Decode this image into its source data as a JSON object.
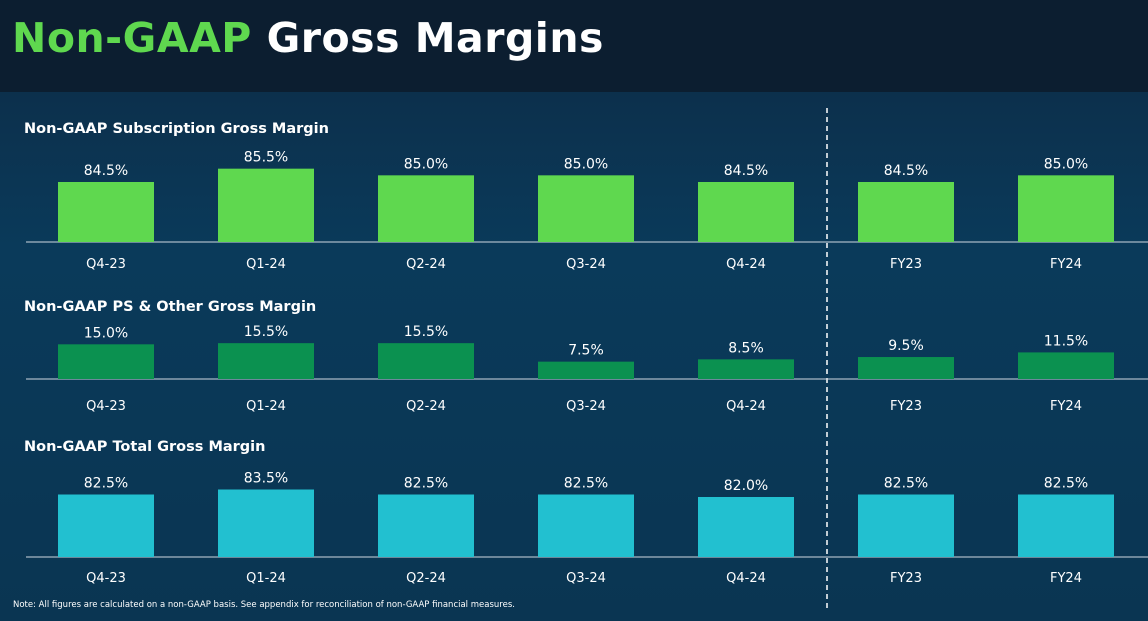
{
  "title": {
    "accent": "Non-GAAP",
    "rest": " Gross Margins"
  },
  "note": "Note: All figures are calculated on a non-GAAP basis. See appendix for reconciliation of non-GAAP financial measures.",
  "chart_data": [
    {
      "type": "bar",
      "title": "Non-GAAP Subscription Gross Margin",
      "categories": [
        "Q4-23",
        "Q1-24",
        "Q2-24",
        "Q3-24",
        "Q4-24",
        "FY23",
        "FY24"
      ],
      "values": [
        84.5,
        85.5,
        85.0,
        85.0,
        84.5,
        84.5,
        85.0
      ],
      "labels": [
        "84.5%",
        "85.5%",
        "85.0%",
        "85.0%",
        "84.5%",
        "84.5%",
        "85.0%"
      ],
      "color": "#5fd84f",
      "ylim": [
        80,
        86
      ]
    },
    {
      "type": "bar",
      "title": "Non-GAAP PS & Other Gross Margin",
      "categories": [
        "Q4-23",
        "Q1-24",
        "Q2-24",
        "Q3-24",
        "Q4-24",
        "FY23",
        "FY24"
      ],
      "values": [
        15.0,
        15.5,
        15.5,
        7.5,
        8.5,
        9.5,
        11.5
      ],
      "labels": [
        "15.0%",
        "15.5%",
        "15.5%",
        "7.5%",
        "8.5%",
        "9.5%",
        "11.5%"
      ],
      "color": "#0b9150",
      "ylim": [
        0,
        16
      ]
    },
    {
      "type": "bar",
      "title": "Non-GAAP Total Gross Margin",
      "categories": [
        "Q4-23",
        "Q1-24",
        "Q2-24",
        "Q3-24",
        "Q4-24",
        "FY23",
        "FY24"
      ],
      "values": [
        82.5,
        83.5,
        82.5,
        82.5,
        82.0,
        82.5,
        82.5
      ],
      "labels": [
        "82.5%",
        "83.5%",
        "82.5%",
        "82.5%",
        "82.0%",
        "82.5%",
        "82.5%"
      ],
      "color": "#22c0d0",
      "ylim": [
        70,
        84
      ]
    }
  ]
}
